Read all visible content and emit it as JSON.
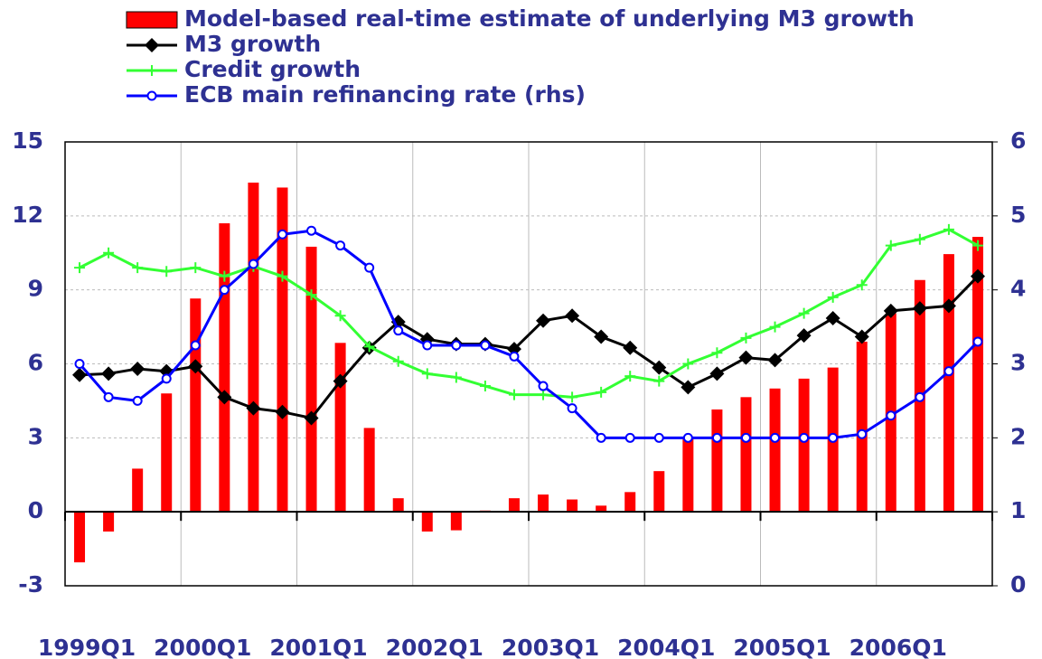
{
  "chart_data": {
    "type": "combo",
    "categories": [
      "1999Q1",
      null,
      null,
      null,
      "2000Q1",
      null,
      null,
      null,
      "2001Q1",
      null,
      null,
      null,
      "2002Q1",
      null,
      null,
      null,
      "2003Q1",
      null,
      null,
      null,
      "2004Q1",
      null,
      null,
      null,
      "2005Q1",
      null,
      null,
      null,
      "2006Q1",
      null,
      null,
      null
    ],
    "series": [
      {
        "name": "Model-based real-time estimate of underlying M3 growth",
        "type": "bar",
        "color": "#ff0000",
        "values": [
          -2.05,
          -0.8,
          1.75,
          4.8,
          8.65,
          11.7,
          13.35,
          13.15,
          10.75,
          6.85,
          3.4,
          0.55,
          -0.8,
          -0.75,
          0.05,
          0.55,
          0.7,
          0.5,
          0.25,
          0.8,
          1.65,
          3.0,
          4.15,
          4.65,
          5.0,
          5.4,
          5.85,
          6.9,
          8.05,
          9.4,
          10.45,
          11.15
        ]
      },
      {
        "name": "M3 growth",
        "type": "line",
        "marker": "diamond",
        "color": "#000000",
        "values": [
          5.55,
          5.6,
          5.8,
          5.7,
          5.9,
          4.65,
          4.2,
          4.05,
          3.8,
          5.3,
          6.65,
          7.7,
          7.0,
          6.8,
          6.8,
          6.6,
          7.75,
          7.95,
          7.1,
          6.65,
          5.85,
          5.05,
          5.6,
          6.25,
          6.15,
          7.15,
          7.85,
          7.1,
          8.15,
          8.25,
          8.35,
          9.55
        ]
      },
      {
        "name": "Credit growth",
        "type": "line",
        "marker": "plus",
        "color": "#33ff33",
        "values": [
          9.9,
          10.5,
          9.9,
          9.75,
          9.9,
          9.55,
          9.95,
          9.55,
          8.8,
          7.95,
          6.7,
          6.1,
          5.6,
          5.45,
          5.1,
          4.75,
          4.75,
          4.65,
          4.85,
          5.5,
          5.3,
          6.0,
          6.45,
          7.05,
          7.5,
          8.05,
          8.7,
          9.2,
          10.8,
          11.05,
          11.45,
          10.8
        ]
      },
      {
        "name": "ECB main refinancing rate (rhs)",
        "type": "line",
        "marker": "circle",
        "color": "#0000ff",
        "axis": "y2",
        "values": [
          3.0,
          2.55,
          2.5,
          2.8,
          3.25,
          4.0,
          4.35,
          4.75,
          4.8,
          4.6,
          4.3,
          3.45,
          3.25,
          3.25,
          3.25,
          3.1,
          2.7,
          2.4,
          2.0,
          2.0,
          2.0,
          2.0,
          2.0,
          2.0,
          2.0,
          2.0,
          2.0,
          2.05,
          2.3,
          2.55,
          2.9,
          3.3
        ]
      }
    ],
    "ylim": [
      -3,
      15
    ],
    "yticks": [
      -3,
      0,
      3,
      6,
      9,
      12,
      15
    ],
    "y2lim": [
      0,
      6
    ],
    "y2ticks": [
      0,
      1,
      2,
      3,
      4,
      5,
      6
    ],
    "grid": true,
    "legend": "top"
  }
}
